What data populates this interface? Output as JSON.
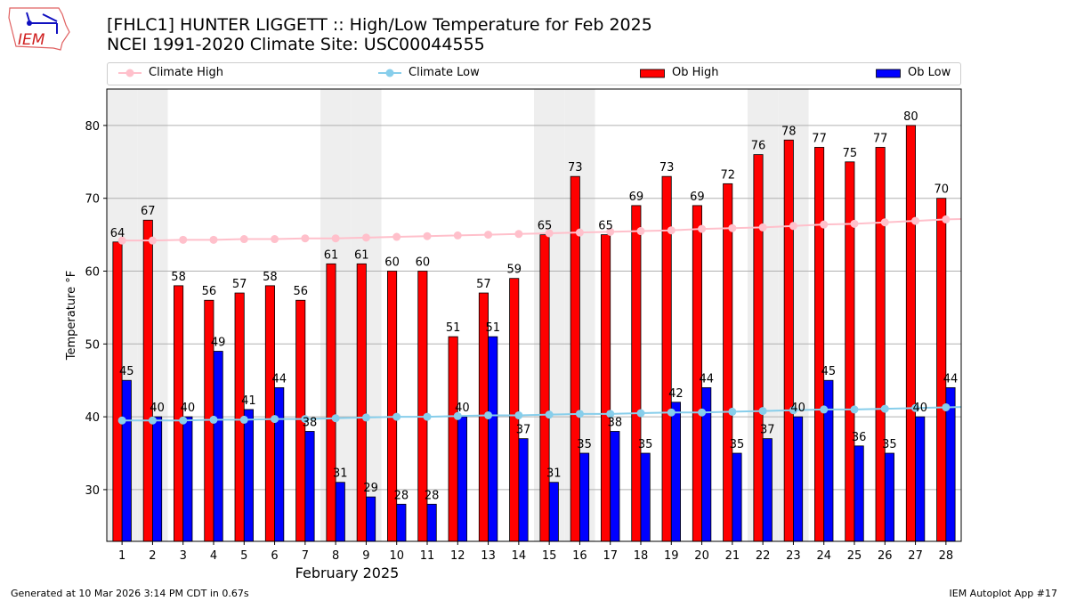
{
  "header": {
    "title_line1": "[FHLC1] HUNTER LIGGETT :: High/Low Temperature for Feb 2025",
    "title_line2": "NCEI 1991-2020 Climate Site: USC00044555",
    "logo_text": "IEM"
  },
  "footer": {
    "left": "Generated at 10 Mar 2026 3:14 PM CDT in 0.67s",
    "right": "IEM Autoplot App #17"
  },
  "colors": {
    "ob_high": "#ff0000",
    "ob_low": "#0000ff",
    "climate_high": "#ffc0cb",
    "climate_low": "#87ceeb",
    "weekend": "#eeeeee"
  },
  "chart_data": {
    "type": "bar",
    "title": "[FHLC1] HUNTER LIGGETT :: High/Low Temperature for Feb 2025",
    "xlabel": "February 2025",
    "ylabel": "Temperature °F",
    "xlim": [
      0.5,
      28.5
    ],
    "ylim": [
      22.9,
      85
    ],
    "yticks": [
      30,
      40,
      50,
      60,
      70,
      80
    ],
    "grid": true,
    "legend_placement": "top, above plot",
    "shaded_days": [
      1,
      2,
      8,
      9,
      15,
      16,
      22,
      23
    ],
    "x": [
      1,
      2,
      3,
      4,
      5,
      6,
      7,
      8,
      9,
      10,
      11,
      12,
      13,
      14,
      15,
      16,
      17,
      18,
      19,
      20,
      21,
      22,
      23,
      24,
      25,
      26,
      27,
      28
    ],
    "series": [
      {
        "name": "Climate High",
        "type": "line",
        "values": [
          64.2,
          64.2,
          64.3,
          64.3,
          64.4,
          64.4,
          64.5,
          64.5,
          64.6,
          64.7,
          64.8,
          64.9,
          65.0,
          65.1,
          65.2,
          65.3,
          65.4,
          65.5,
          65.6,
          65.8,
          65.9,
          66.0,
          66.2,
          66.4,
          66.5,
          66.7,
          66.9,
          67.1
        ]
      },
      {
        "name": "Climate Low",
        "type": "line",
        "values": [
          39.5,
          39.5,
          39.5,
          39.6,
          39.6,
          39.7,
          39.7,
          39.8,
          39.9,
          40.0,
          40.0,
          40.1,
          40.2,
          40.2,
          40.3,
          40.4,
          40.4,
          40.5,
          40.6,
          40.6,
          40.7,
          40.8,
          40.9,
          41.0,
          41.0,
          41.1,
          41.2,
          41.3
        ]
      },
      {
        "name": "Ob High",
        "type": "bar",
        "values": [
          64,
          67,
          58,
          56,
          57,
          58,
          56,
          61,
          61,
          60,
          60,
          51,
          57,
          59,
          65,
          73,
          65,
          69,
          73,
          69,
          72,
          76,
          78,
          77,
          75,
          77,
          80,
          70
        ]
      },
      {
        "name": "Ob Low",
        "type": "bar",
        "values": [
          45,
          40,
          40,
          49,
          41,
          44,
          38,
          31,
          29,
          28,
          28,
          40,
          51,
          37,
          31,
          35,
          38,
          35,
          42,
          44,
          35,
          37,
          40,
          45,
          36,
          35,
          40,
          44
        ]
      }
    ]
  }
}
